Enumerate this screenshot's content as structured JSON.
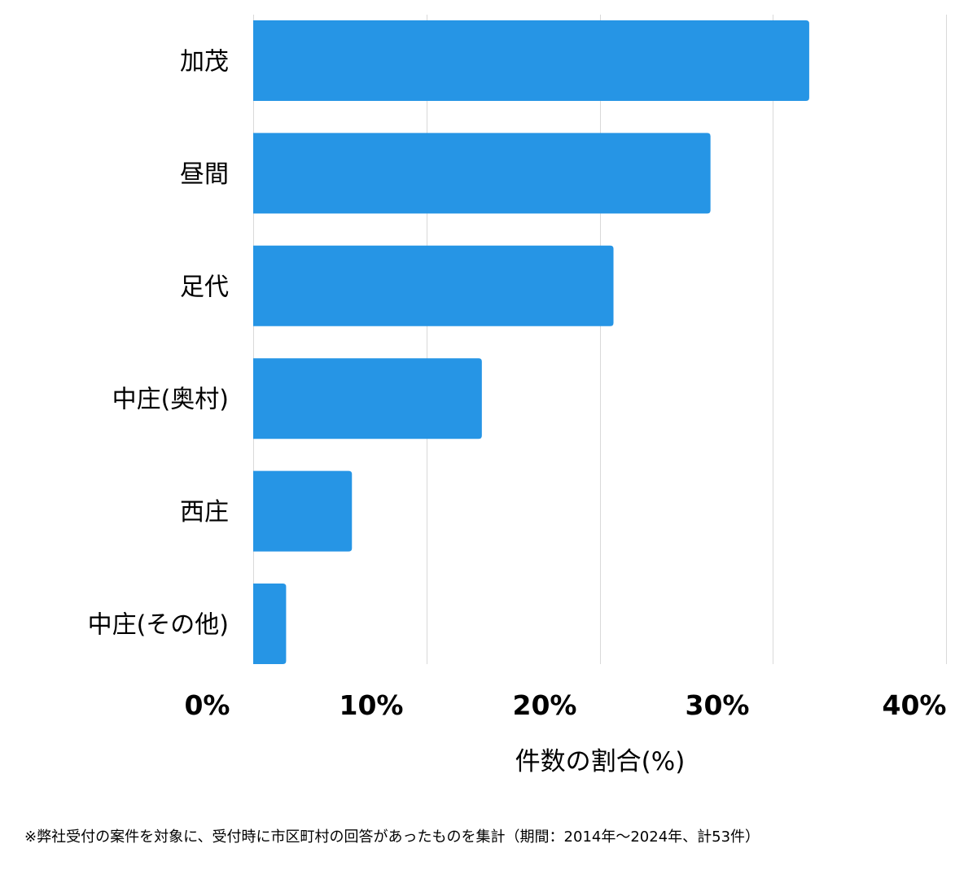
{
  "chart_data": {
    "type": "bar",
    "orientation": "horizontal",
    "categories": [
      "加茂",
      "昼間",
      "足代",
      "中庄(奥村)",
      "西庄",
      "中庄(その他)"
    ],
    "values": [
      32.1,
      26.4,
      20.8,
      13.2,
      5.7,
      1.9
    ],
    "xlabel": "件数の割合(%)",
    "ylabel": "",
    "xlim": [
      0,
      40
    ],
    "xticks": [
      0,
      10,
      20,
      30,
      40
    ],
    "xtick_labels": [
      "0%",
      "10%",
      "20%",
      "30%",
      "40%"
    ],
    "grid": true,
    "legend": "none",
    "colors": {
      "bar": "#2695e5",
      "grid": "#d9d9d9"
    }
  },
  "footnote": "※弊社受付の案件を対象に、受付時に市区町村の回答があったものを集計（期間：2014年～2024年、計53件）"
}
